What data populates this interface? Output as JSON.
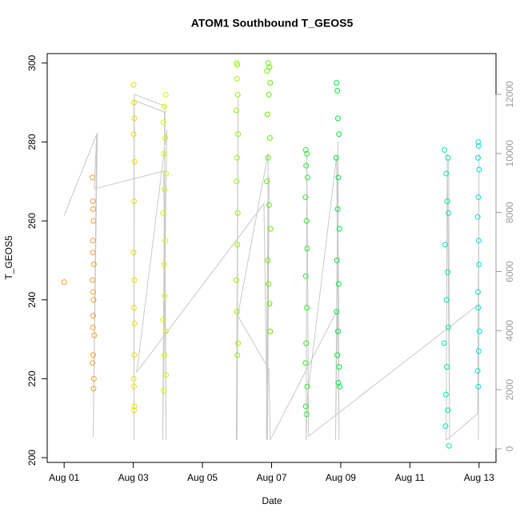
{
  "chart_data": {
    "type": "scatter",
    "title": "ATOM1 Southbound T_GEOS5",
    "x_label": "Date",
    "y_label": "T_GEOS5",
    "xlim": [
      0.51,
      13.49
    ],
    "ylim": [
      198.8,
      302.4
    ],
    "y2lim": [
      -460,
      13380
    ],
    "xticks": [
      {
        "value": 1,
        "label": "Aug 01"
      },
      {
        "value": 3,
        "label": "Aug 03"
      },
      {
        "value": 5,
        "label": "Aug 05"
      },
      {
        "value": 7,
        "label": "Aug 07"
      },
      {
        "value": 9,
        "label": "Aug 09"
      },
      {
        "value": 11,
        "label": "Aug 11"
      },
      {
        "value": 13,
        "label": "Aug 13"
      }
    ],
    "yticks": [
      200,
      220,
      240,
      260,
      280,
      300
    ],
    "y2ticks": [
      0,
      2000,
      4000,
      6000,
      8000,
      10000,
      12000
    ],
    "series": [
      {
        "type": "line",
        "axis": "y2",
        "color": "#c8c8c8",
        "x": [
          1.0,
          1.96,
          1.84,
          1.94,
          1.87,
          3.88,
          3.95,
          3.9,
          3.02,
          3.02,
          3.03,
          3.92,
          3.85,
          3.97,
          3.1,
          6.78,
          6.88,
          6.93,
          6.85,
          6.9,
          6.02,
          5.98,
          6.03,
          6.0,
          6.02,
          6.92,
          6.96,
          8.9,
          8.85,
          8.92,
          8.95,
          8.88,
          8.04,
          8.0,
          8.02,
          8.07,
          13.0,
          12.98,
          13.0,
          12.96,
          12.15,
          12.05,
          12.08,
          12.15,
          12.12
        ],
        "values": [
          7900,
          10700,
          400,
          10600,
          8800,
          9400,
          300,
          11400,
          11800,
          300,
          12000,
          11600,
          300,
          10800,
          2600,
          8300,
          300,
          9200,
          300,
          10000,
          4500,
          300,
          11900,
          300,
          4500,
          2700,
          300,
          4700,
          300,
          10400,
          300,
          9900,
          1800,
          300,
          10100,
          430,
          4900,
          300,
          10000,
          1200,
          380,
          300,
          10000,
          300,
          9800
        ]
      },
      {
        "color": "#f0a030",
        "x": [
          1.0,
          1.82,
          1.83,
          1.84,
          1.85,
          1.83,
          1.86,
          1.82,
          1.84,
          1.85,
          1.83,
          1.87,
          1.84,
          1.82,
          1.86,
          1.85,
          1.83,
          1.84
        ],
        "values": [
          244.5,
          271,
          265,
          263,
          260,
          255,
          249,
          245,
          242,
          240,
          233,
          231,
          226,
          224,
          220,
          217.5,
          252,
          236
        ]
      },
      {
        "color": "#e6e000",
        "x": [
          3.01,
          3.02,
          3.03,
          3.01,
          3.04,
          3.02,
          3.01,
          3.03,
          3.02,
          3.04,
          3.03,
          3.01,
          3.02,
          3.03,
          3.02
        ],
        "values": [
          294.5,
          290,
          286,
          282,
          275,
          265,
          252,
          245,
          238,
          234,
          226,
          220,
          218,
          213,
          212
        ]
      },
      {
        "color": "#d4f500",
        "x": [
          3.94,
          3.9,
          3.87,
          3.92,
          3.88,
          3.95,
          3.9,
          3.86,
          3.93,
          3.89,
          3.91,
          3.86,
          3.94,
          3.9,
          3.95,
          3.88
        ],
        "values": [
          292,
          289,
          285,
          281,
          277,
          272,
          268,
          262,
          255,
          249,
          241,
          235,
          232,
          226,
          221,
          217
        ]
      },
      {
        "color": "#99f000",
        "x": [
          5.99,
          6.01,
          6.0,
          6.02,
          5.98,
          6.03,
          6.0,
          5.99,
          6.02,
          6.01,
          5.98,
          6.0,
          6.03,
          6.01
        ],
        "values": [
          300,
          299.5,
          296,
          292,
          288,
          282,
          276,
          270,
          262,
          254,
          245,
          237,
          229,
          226
        ]
      },
      {
        "color": "#66e800",
        "x": [
          6.9,
          6.94,
          6.87,
          6.96,
          6.92,
          6.88,
          6.95,
          6.9,
          6.86,
          6.93,
          6.97,
          6.89,
          6.91,
          6.94,
          6.96
        ],
        "values": [
          300,
          299,
          298,
          295,
          292,
          287,
          281,
          276,
          270,
          264,
          258,
          250,
          244,
          239,
          232
        ]
      },
      {
        "color": "#30e830",
        "x": [
          7.99,
          8.02,
          8.0,
          8.04,
          7.98,
          8.01,
          8.03,
          7.99,
          8.02,
          8.0,
          7.98,
          8.03,
          7.99,
          8.01
        ],
        "values": [
          278,
          277,
          274,
          271,
          266,
          260,
          253,
          246,
          238,
          229,
          224,
          218,
          213,
          211
        ]
      },
      {
        "color": "#00e840",
        "x": [
          8.88,
          8.9,
          8.92,
          8.95,
          8.87,
          8.93,
          8.91,
          8.96,
          8.89,
          8.94,
          8.88,
          8.92,
          8.9,
          8.95,
          8.93,
          8.97
        ],
        "values": [
          295,
          293,
          286,
          282,
          276,
          271,
          263,
          258,
          250,
          244,
          237,
          232,
          226,
          223,
          219,
          218
        ]
      },
      {
        "color": "#00e8a8",
        "x": [
          12.0,
          12.1,
          12.05,
          12.08,
          12.12,
          12.02,
          12.09,
          12.06,
          12.11,
          11.99,
          12.07,
          12.04,
          12.1,
          12.03,
          12.13
        ],
        "values": [
          278,
          276,
          272,
          265,
          262,
          254,
          247,
          240,
          233,
          229,
          223,
          216,
          212,
          208,
          203
        ]
      },
      {
        "color": "#00e8c4",
        "x": [
          12.98,
          12.99,
          12.97,
          13.0,
          12.98,
          12.96,
          12.99,
          13.0,
          12.97,
          12.98,
          13.01,
          12.99,
          12.96,
          12.98
        ],
        "values": [
          280,
          279,
          276,
          273,
          266,
          261,
          255,
          249,
          242,
          238,
          232,
          227,
          222,
          218
        ]
      }
    ]
  }
}
